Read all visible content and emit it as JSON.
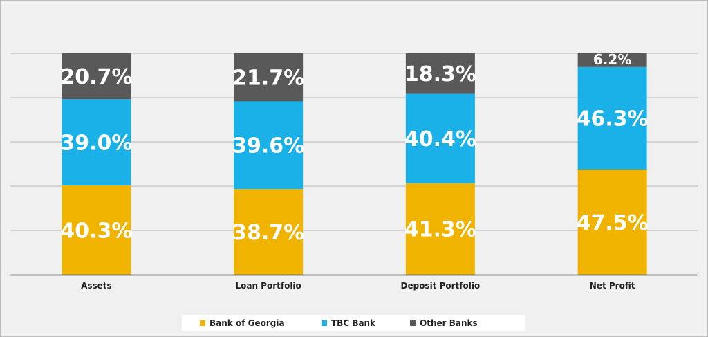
{
  "chart_data": {
    "type": "bar",
    "stacked": true,
    "categories": [
      "Assets",
      "Loan Portfolio",
      "Deposit Portfolio",
      "Net Profit"
    ],
    "series": [
      {
        "name": "Bank of Georgia",
        "values": [
          40.3,
          38.7,
          41.3,
          47.5
        ],
        "labels": [
          "40.3%",
          "38.7%",
          "41.3%",
          "47.5%"
        ],
        "color": "#f0b400"
      },
      {
        "name": "TBC Bank",
        "values": [
          39.0,
          39.6,
          40.4,
          46.3
        ],
        "labels": [
          "39.0%",
          "39.6%",
          "40.4%",
          "46.3%"
        ],
        "color": "#1ab0e8"
      },
      {
        "name": "Other Banks",
        "values": [
          20.7,
          21.7,
          18.3,
          6.2
        ],
        "labels": [
          "20.7%",
          "21.7%",
          "18.3%",
          "6.2%"
        ],
        "color": "#595959"
      }
    ],
    "ylim": [
      0,
      100
    ],
    "grid": true,
    "legend_position": "bottom"
  },
  "legend": {
    "items": [
      {
        "label": "Bank of Georgia",
        "color": "#f0b400"
      },
      {
        "label": "TBC Bank",
        "color": "#1ab0e8"
      },
      {
        "label": "Other Banks",
        "color": "#595959"
      }
    ]
  }
}
